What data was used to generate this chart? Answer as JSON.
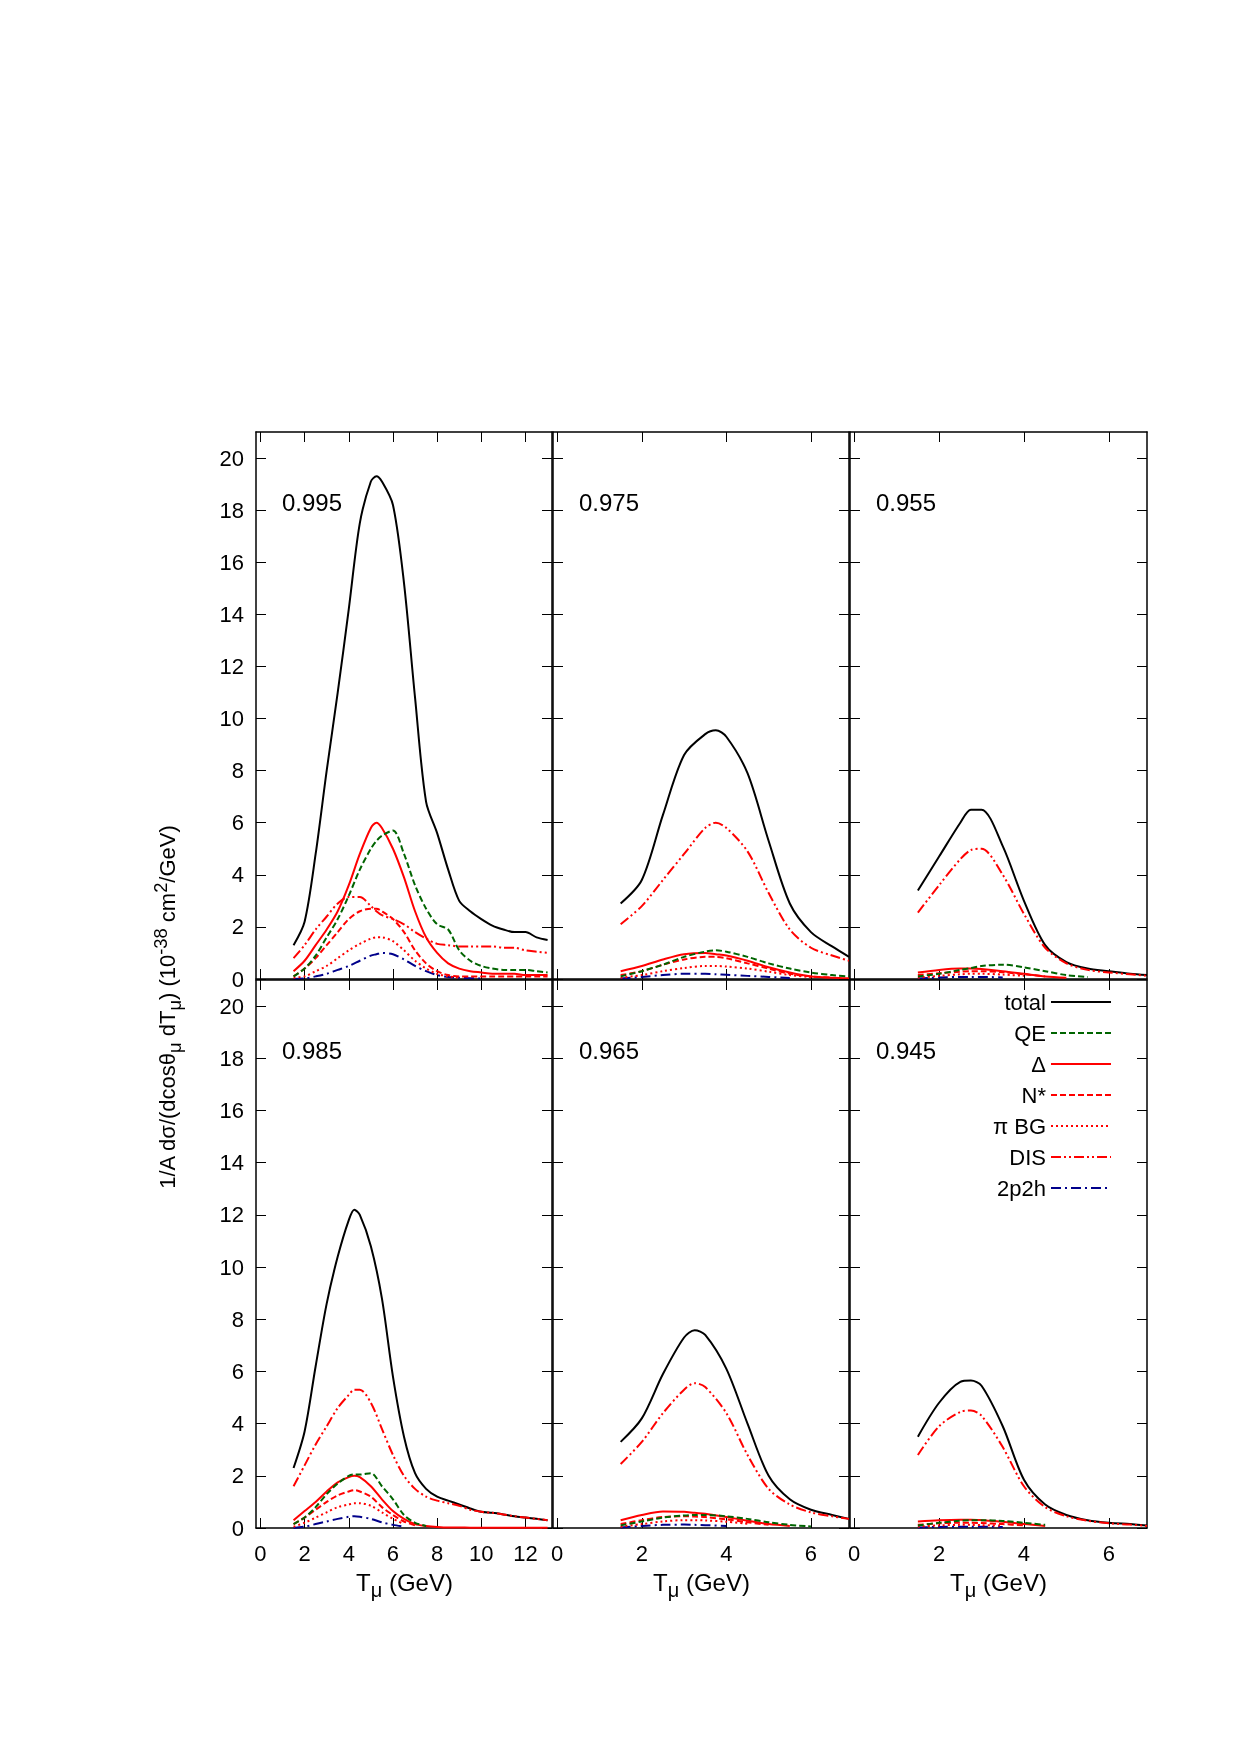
{
  "chart_data": [
    {
      "type": "line",
      "annotations": [
        "0.995"
      ],
      "ylabel": "1/A dσ/(dcosθ$_{μ}$ dT$_{μ}$) (10$^{-38}$ cm$^{2}$/GeV)",
      "tick_labels": "y",
      "grid": false,
      "xlim": [
        -0.2,
        13.2
      ],
      "xticks": [
        0,
        2,
        4,
        6,
        8,
        10,
        12
      ],
      "ylim": [
        0,
        21
      ],
      "yticks": [
        0,
        2,
        4,
        6,
        8,
        10,
        12,
        14,
        16,
        18,
        20
      ],
      "x": [
        1.5,
        2,
        2.5,
        3,
        3.5,
        4,
        4.5,
        5,
        5.25,
        5.5,
        6,
        6.5,
        7,
        7.5,
        8,
        8.5,
        9,
        9.5,
        10,
        10.5,
        11,
        11.5,
        12,
        12.5,
        13
      ],
      "series": [
        {
          "color": "#000000",
          "line_style": "solid",
          "values": [
            1.3,
            2.2,
            4.8,
            8.0,
            11.0,
            14.2,
            17.5,
            19.1,
            19.3,
            19.1,
            18.2,
            15.2,
            10.8,
            6.8,
            5.6,
            4.2,
            3.0,
            2.6,
            2.3,
            2.05,
            1.9,
            1.8,
            1.8,
            1.6,
            1.5
          ]
        },
        {
          "color": "#006400",
          "line_style": "dashed",
          "values": [
            0.1,
            0.4,
            0.9,
            1.6,
            2.3,
            3.2,
            4.2,
            5.0,
            5.3,
            5.5,
            5.7,
            4.8,
            3.6,
            2.7,
            2.1,
            1.9,
            1.1,
            0.7,
            0.5,
            0.4,
            0.35,
            0.35,
            0.35,
            0.3,
            0.25
          ]
        },
        {
          "color": "#ff0000",
          "line_style": "solid",
          "values": [
            0.3,
            0.7,
            1.3,
            1.9,
            2.6,
            3.6,
            4.8,
            5.8,
            6.0,
            5.8,
            5.0,
            3.9,
            2.6,
            1.6,
            1.0,
            0.6,
            0.4,
            0.3,
            0.25,
            0.2,
            0.2,
            0.2,
            0.15,
            0.15,
            0.15
          ]
        },
        {
          "color": "#ff0000",
          "line_style": "dashed",
          "values": [
            0.1,
            0.4,
            0.8,
            1.3,
            1.8,
            2.3,
            2.6,
            2.7,
            2.7,
            2.6,
            2.3,
            1.8,
            1.1,
            0.6,
            0.3,
            0.15,
            0.1,
            0.1,
            0.1,
            0.1,
            0.1,
            0.1,
            0.1,
            0.1,
            0.1
          ]
        },
        {
          "color": "#ff0000",
          "line_style": "dotted",
          "values": [
            0.05,
            0.1,
            0.3,
            0.5,
            0.8,
            1.1,
            1.35,
            1.55,
            1.6,
            1.6,
            1.45,
            1.1,
            0.7,
            0.4,
            0.2,
            0.1,
            0.05,
            null,
            null,
            null,
            null,
            null,
            null,
            null,
            null
          ]
        },
        {
          "color": "#ff0000",
          "line_style": "dashdotdot",
          "values": [
            0.8,
            1.3,
            1.9,
            2.4,
            2.9,
            3.15,
            3.15,
            2.8,
            2.6,
            2.45,
            2.3,
            2.1,
            1.8,
            1.55,
            1.35,
            1.3,
            1.25,
            1.25,
            1.25,
            1.25,
            1.2,
            1.2,
            1.1,
            1.05,
            1.0
          ]
        },
        {
          "color": "#00008b",
          "line_style": "dashdot",
          "values": [
            0,
            0.02,
            0.1,
            0.2,
            0.35,
            0.5,
            0.7,
            0.9,
            0.95,
            1.0,
            0.95,
            0.75,
            0.5,
            0.3,
            0.15,
            0.08,
            0.05,
            0.03,
            0.02,
            null,
            null,
            null,
            null,
            null,
            null
          ]
        }
      ]
    },
    {
      "type": "line",
      "annotations": [
        "0.975"
      ],
      "tick_labels": false,
      "grid": false,
      "xlim": [
        -0.1,
        6.9
      ],
      "xticks": [
        0,
        2,
        4,
        6
      ],
      "ylim": [
        0,
        21
      ],
      "yticks": [
        0,
        2,
        4,
        6,
        8,
        10,
        12,
        14,
        16,
        18,
        20
      ],
      "x": [
        1.5,
        2,
        2.5,
        3,
        3.5,
        3.75,
        4,
        4.5,
        5,
        5.5,
        6,
        6.5,
        6.9
      ],
      "series": [
        {
          "color": "#000000",
          "line_style": "solid",
          "values": [
            2.9,
            3.8,
            6.3,
            8.6,
            9.4,
            9.55,
            9.3,
            7.9,
            5.3,
            2.9,
            1.8,
            1.25,
            0.85
          ]
        },
        {
          "color": "#006400",
          "line_style": "dashed",
          "values": [
            0.1,
            0.3,
            0.55,
            0.85,
            1.05,
            1.1,
            1.05,
            0.85,
            0.6,
            0.4,
            0.25,
            0.15,
            0.1
          ]
        },
        {
          "color": "#ff0000",
          "line_style": "solid",
          "values": [
            0.3,
            0.5,
            0.75,
            0.95,
            1.0,
            0.95,
            0.9,
            0.7,
            0.45,
            0.25,
            0.1,
            0.05,
            0.03
          ]
        },
        {
          "color": "#ff0000",
          "line_style": "dashed",
          "values": [
            0.15,
            0.3,
            0.55,
            0.75,
            0.85,
            0.85,
            0.8,
            0.6,
            0.4,
            0.2,
            0.1,
            0.05,
            null
          ]
        },
        {
          "color": "#ff0000",
          "line_style": "dotted",
          "values": [
            0.05,
            0.15,
            0.3,
            0.42,
            0.5,
            0.5,
            0.48,
            0.4,
            0.28,
            0.15,
            0.07,
            null,
            null
          ]
        },
        {
          "color": "#ff0000",
          "line_style": "dashdotdot",
          "values": [
            2.1,
            2.8,
            3.8,
            4.8,
            5.8,
            6.0,
            5.8,
            4.9,
            3.3,
            1.9,
            1.2,
            0.9,
            0.7
          ]
        },
        {
          "color": "#00008b",
          "line_style": "dashdot",
          "values": [
            0.02,
            0.08,
            0.15,
            0.2,
            0.2,
            0.18,
            0.16,
            0.12,
            0.08,
            0.04,
            null,
            null,
            null
          ]
        }
      ]
    },
    {
      "type": "line",
      "annotations": [
        "0.955"
      ],
      "tick_labels": false,
      "grid": false,
      "xlim": [
        -0.1,
        6.9
      ],
      "xticks": [
        0,
        2,
        4,
        6
      ],
      "ylim": [
        0,
        21
      ],
      "yticks": [
        0,
        2,
        4,
        6,
        8,
        10,
        12,
        14,
        16,
        18,
        20
      ],
      "x": [
        1.5,
        2,
        2.5,
        2.75,
        3,
        3.5,
        4,
        4.5,
        5,
        5.5,
        6,
        6.5,
        6.9
      ],
      "series": [
        {
          "color": "#000000",
          "line_style": "solid",
          "values": [
            3.4,
            4.7,
            6.0,
            6.5,
            6.5,
            5.1,
            3.0,
            1.3,
            0.65,
            0.4,
            0.3,
            0.2,
            0.15
          ]
        },
        {
          "color": "#006400",
          "line_style": "dashed",
          "values": [
            0.1,
            0.2,
            0.35,
            0.42,
            0.5,
            0.55,
            0.45,
            0.3,
            0.15,
            0.08,
            null,
            null,
            null
          ]
        },
        {
          "color": "#ff0000",
          "line_style": "solid",
          "values": [
            0.25,
            0.35,
            0.4,
            0.4,
            0.38,
            0.3,
            0.2,
            0.1,
            0.05,
            null,
            null,
            null,
            null
          ]
        },
        {
          "color": "#ff0000",
          "line_style": "dashed",
          "values": [
            0.15,
            0.22,
            0.28,
            0.3,
            0.3,
            0.26,
            0.18,
            0.1,
            null,
            null,
            null,
            null,
            null
          ]
        },
        {
          "color": "#ff0000",
          "line_style": "dotted",
          "values": [
            0.05,
            0.12,
            0.18,
            0.2,
            0.2,
            0.17,
            0.12,
            null,
            null,
            null,
            null,
            null,
            null
          ]
        },
        {
          "color": "#ff0000",
          "line_style": "dashdotdot",
          "values": [
            2.55,
            3.6,
            4.6,
            4.95,
            5.0,
            4.0,
            2.5,
            1.2,
            0.6,
            0.35,
            0.25,
            0.18,
            0.12
          ]
        },
        {
          "color": "#00008b",
          "line_style": "dashdot",
          "values": [
            0.02,
            0.06,
            0.08,
            0.08,
            0.08,
            0.06,
            null,
            null,
            null,
            null,
            null,
            null,
            null
          ]
        }
      ]
    },
    {
      "type": "line",
      "annotations": [
        "0.985"
      ],
      "xlabel": "T$_{μ}$ (GeV)",
      "grid": false,
      "xlim": [
        -0.2,
        13.2
      ],
      "xticks": [
        0,
        2,
        4,
        6,
        8,
        10,
        12
      ],
      "ylim": [
        0,
        21
      ],
      "yticks": [
        0,
        2,
        4,
        6,
        8,
        10,
        12,
        14,
        16,
        18,
        20
      ],
      "x": [
        1.5,
        2,
        2.5,
        3,
        3.5,
        4,
        4.25,
        4.5,
        5,
        5.5,
        6,
        6.5,
        7,
        7.5,
        8,
        8.5,
        9,
        9.5,
        10,
        10.5,
        11,
        11.5,
        12,
        12.5,
        13
      ],
      "series": [
        {
          "color": "#000000",
          "line_style": "solid",
          "values": [
            2.3,
            3.7,
            6.2,
            8.6,
            10.4,
            11.8,
            12.2,
            12.0,
            10.8,
            8.8,
            5.8,
            3.5,
            2.1,
            1.5,
            1.2,
            1.05,
            0.9,
            0.75,
            0.62,
            0.58,
            0.52,
            0.45,
            0.4,
            0.35,
            0.3
          ]
        },
        {
          "color": "#006400",
          "line_style": "dashed",
          "values": [
            0.15,
            0.4,
            0.8,
            1.3,
            1.7,
            2.0,
            2.05,
            2.05,
            2.1,
            1.6,
            1.1,
            0.5,
            0.2,
            0.08,
            null,
            null,
            null,
            null,
            null,
            null,
            null,
            null,
            null,
            null,
            null
          ]
        },
        {
          "color": "#ff0000",
          "line_style": "solid",
          "values": [
            0.3,
            0.65,
            1.0,
            1.4,
            1.75,
            1.95,
            2.0,
            1.95,
            1.6,
            1.1,
            0.65,
            0.35,
            0.15,
            0.08,
            0.04,
            0.02,
            0.02,
            0.01,
            0.01,
            0.01,
            0.01,
            0.01,
            0.01,
            0.01,
            0.01
          ]
        },
        {
          "color": "#ff0000",
          "line_style": "dashed",
          "values": [
            0.15,
            0.4,
            0.7,
            1.0,
            1.25,
            1.4,
            1.45,
            1.4,
            1.2,
            0.8,
            0.5,
            0.25,
            0.1,
            null,
            null,
            null,
            null,
            null,
            null,
            null,
            null,
            null,
            null,
            null,
            null
          ]
        },
        {
          "color": "#ff0000",
          "line_style": "dotted",
          "values": [
            0.05,
            0.2,
            0.4,
            0.6,
            0.8,
            0.9,
            0.95,
            0.95,
            0.85,
            0.6,
            0.35,
            0.15,
            null,
            null,
            null,
            null,
            null,
            null,
            null,
            null,
            null,
            null,
            null,
            null,
            null
          ]
        },
        {
          "color": "#ff0000",
          "line_style": "dashdotdot",
          "values": [
            1.6,
            2.4,
            3.2,
            3.9,
            4.6,
            5.1,
            5.3,
            5.3,
            4.8,
            3.8,
            2.8,
            2.0,
            1.5,
            1.2,
            1.05,
            0.95,
            0.85,
            0.7,
            0.62,
            0.58,
            0.52,
            0.45,
            0.4,
            0.35,
            0.3
          ]
        },
        {
          "color": "#00008b",
          "line_style": "dashdot",
          "values": [
            0,
            0.05,
            0.15,
            0.25,
            0.35,
            0.43,
            0.45,
            0.43,
            0.35,
            0.22,
            0.12,
            0.05,
            null,
            null,
            null,
            null,
            null,
            null,
            null,
            null,
            null,
            null,
            null,
            null,
            null
          ]
        }
      ]
    },
    {
      "type": "line",
      "annotations": [
        "0.965"
      ],
      "xlabel": "T$_{μ}$ (GeV)",
      "tick_labels": "x",
      "grid": false,
      "xlim": [
        -0.1,
        6.9
      ],
      "xticks": [
        0,
        2,
        4,
        6
      ],
      "ylim": [
        0,
        21
      ],
      "yticks": [
        0,
        2,
        4,
        6,
        8,
        10,
        12,
        14,
        16,
        18,
        20
      ],
      "x": [
        1.5,
        2,
        2.5,
        3,
        3.25,
        3.5,
        4,
        4.5,
        5,
        5.5,
        6,
        6.5,
        6.9
      ],
      "series": [
        {
          "color": "#000000",
          "line_style": "solid",
          "values": [
            3.3,
            4.2,
            5.9,
            7.3,
            7.58,
            7.4,
            6.1,
            4.0,
            2.0,
            1.1,
            0.7,
            0.5,
            0.35
          ]
        },
        {
          "color": "#006400",
          "line_style": "dashed",
          "values": [
            0.1,
            0.25,
            0.4,
            0.48,
            0.5,
            0.5,
            0.45,
            0.35,
            0.22,
            0.12,
            0.06,
            null,
            null
          ]
        },
        {
          "color": "#ff0000",
          "line_style": "solid",
          "values": [
            0.3,
            0.5,
            0.63,
            0.62,
            0.58,
            0.55,
            0.42,
            0.28,
            0.15,
            0.08,
            null,
            null,
            null
          ]
        },
        {
          "color": "#ff0000",
          "line_style": "dashed",
          "values": [
            0.15,
            0.3,
            0.42,
            0.45,
            0.44,
            0.42,
            0.33,
            0.22,
            0.12,
            null,
            null,
            null,
            null
          ]
        },
        {
          "color": "#ff0000",
          "line_style": "dotted",
          "values": [
            0.05,
            0.15,
            0.25,
            0.3,
            0.3,
            0.29,
            0.24,
            0.16,
            null,
            null,
            null,
            null,
            null
          ]
        },
        {
          "color": "#ff0000",
          "line_style": "dashdotdot",
          "values": [
            2.45,
            3.3,
            4.4,
            5.3,
            5.55,
            5.4,
            4.4,
            2.8,
            1.5,
            0.9,
            0.6,
            0.45,
            0.35
          ]
        },
        {
          "color": "#00008b",
          "line_style": "dashdot",
          "values": [
            0.02,
            0.08,
            0.12,
            0.13,
            0.12,
            0.11,
            0.08,
            null,
            null,
            null,
            null,
            null,
            null
          ]
        }
      ]
    },
    {
      "type": "line",
      "annotations": [
        "0.945"
      ],
      "xlabel": "T$_{μ}$ (GeV)",
      "tick_labels": "x",
      "legend": "top right",
      "grid": false,
      "xlim": [
        -0.1,
        6.9
      ],
      "xticks": [
        0,
        2,
        4,
        6
      ],
      "ylim": [
        0,
        21
      ],
      "yticks": [
        0,
        2,
        4,
        6,
        8,
        10,
        12,
        14,
        16,
        18,
        20
      ],
      "x": [
        1.5,
        2,
        2.5,
        2.75,
        3,
        3.5,
        4,
        4.5,
        5,
        5.5,
        6,
        6.5,
        6.9
      ],
      "series": [
        {
          "name": "total",
          "color": "#000000",
          "line_style": "solid",
          "values": [
            3.5,
            4.8,
            5.6,
            5.65,
            5.45,
            3.9,
            1.85,
            0.9,
            0.5,
            0.3,
            0.2,
            0.15,
            0.1
          ]
        },
        {
          "name": "QE",
          "color": "#006400",
          "line_style": "dashed",
          "values": [
            0.1,
            0.2,
            0.28,
            0.3,
            0.3,
            0.27,
            0.2,
            0.12,
            null,
            null,
            null,
            null,
            null
          ]
        },
        {
          "name": "Δ",
          "color": "#ff0000",
          "line_style": "solid",
          "values": [
            0.25,
            0.3,
            0.32,
            0.32,
            0.3,
            0.24,
            0.15,
            0.08,
            null,
            null,
            null,
            null,
            null
          ]
        },
        {
          "name": "N*",
          "color": "#ff0000",
          "line_style": "dashed",
          "values": [
            0.12,
            0.18,
            0.2,
            0.2,
            0.19,
            0.15,
            0.1,
            null,
            null,
            null,
            null,
            null,
            null
          ]
        },
        {
          "name": "π BG",
          "color": "#ff0000",
          "line_style": "dotted",
          "values": [
            0.05,
            0.1,
            0.12,
            0.12,
            0.11,
            0.09,
            null,
            null,
            null,
            null,
            null,
            null,
            null
          ]
        },
        {
          "name": "DIS",
          "color": "#ff0000",
          "line_style": "dashdotdot",
          "values": [
            2.8,
            3.9,
            4.45,
            4.5,
            4.3,
            3.1,
            1.6,
            0.8,
            0.45,
            0.28,
            0.18,
            0.13,
            0.08
          ]
        },
        {
          "name": "2p2h",
          "color": "#00008b",
          "line_style": "dashdot",
          "values": [
            0.02,
            0.04,
            0.05,
            0.05,
            0.05,
            0.04,
            null,
            null,
            null,
            null,
            null,
            null,
            null
          ]
        }
      ]
    }
  ]
}
